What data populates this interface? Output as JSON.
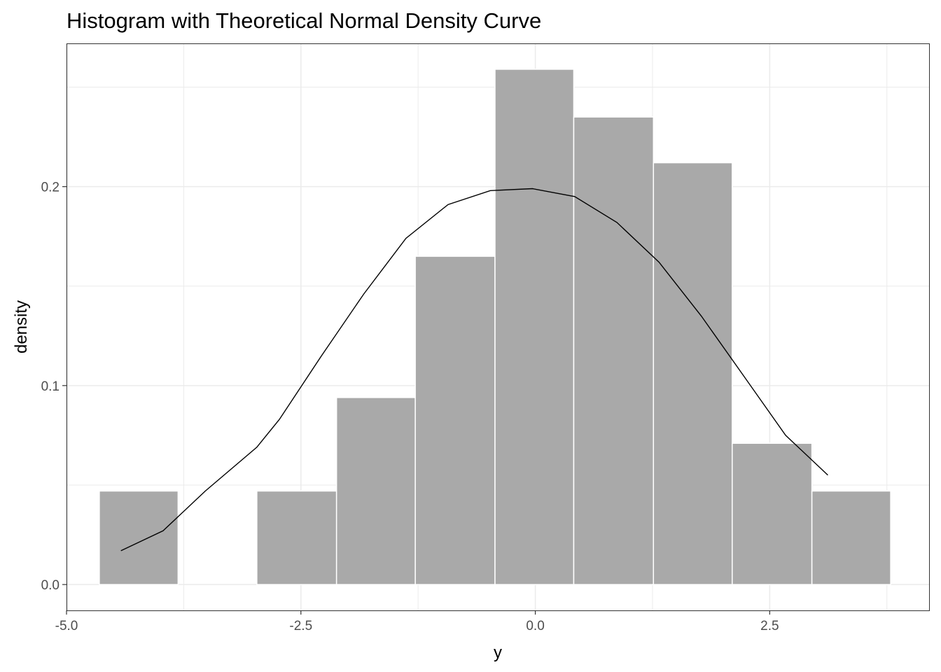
{
  "chart_data": {
    "type": "bar",
    "title": "Histogram with Theoretical Normal Density Curve",
    "xlabel": "y",
    "ylabel": "density",
    "xlim": [
      -5.0,
      4.2
    ],
    "ylim": [
      -0.013,
      0.272
    ],
    "x_ticks": [
      -5.0,
      -2.5,
      0.0,
      2.5
    ],
    "x_tick_labels": [
      "-5.0",
      "-2.5",
      "0.0",
      "2.5"
    ],
    "y_ticks": [
      0.0,
      0.1,
      0.2
    ],
    "y_tick_labels": [
      "0.0",
      "0.1",
      "0.2"
    ],
    "grid": true,
    "bins": [
      {
        "x0": -4.65,
        "x1": -3.81,
        "density": 0.047
      },
      {
        "x0": -3.81,
        "x1": -2.97,
        "density": 0.0
      },
      {
        "x0": -2.97,
        "x1": -2.12,
        "density": 0.047
      },
      {
        "x0": -2.12,
        "x1": -1.28,
        "density": 0.094
      },
      {
        "x0": -1.28,
        "x1": -0.43,
        "density": 0.165
      },
      {
        "x0": -0.43,
        "x1": 0.41,
        "density": 0.259
      },
      {
        "x0": 0.41,
        "x1": 1.26,
        "density": 0.235
      },
      {
        "x0": 1.26,
        "x1": 2.1,
        "density": 0.212
      },
      {
        "x0": 2.1,
        "x1": 2.95,
        "density": 0.071
      },
      {
        "x0": 2.95,
        "x1": 3.79,
        "density": 0.047
      }
    ],
    "density_curve": {
      "x": [
        -4.42,
        -3.97,
        -3.52,
        -2.97,
        -2.73,
        -2.28,
        -1.83,
        -1.38,
        -0.93,
        -0.48,
        -0.03,
        0.42,
        0.87,
        1.32,
        1.77,
        2.22,
        2.67,
        3.12
      ],
      "y": [
        0.017,
        0.027,
        0.047,
        0.069,
        0.083,
        0.115,
        0.146,
        0.174,
        0.191,
        0.198,
        0.199,
        0.195,
        0.182,
        0.162,
        0.135,
        0.105,
        0.075,
        0.055
      ]
    },
    "colors": {
      "bar_fill": "#a9a9a9",
      "bar_edge": "#ffffff",
      "curve": "#000000",
      "grid": "#ebebeb",
      "panel_border": "#333333"
    }
  }
}
